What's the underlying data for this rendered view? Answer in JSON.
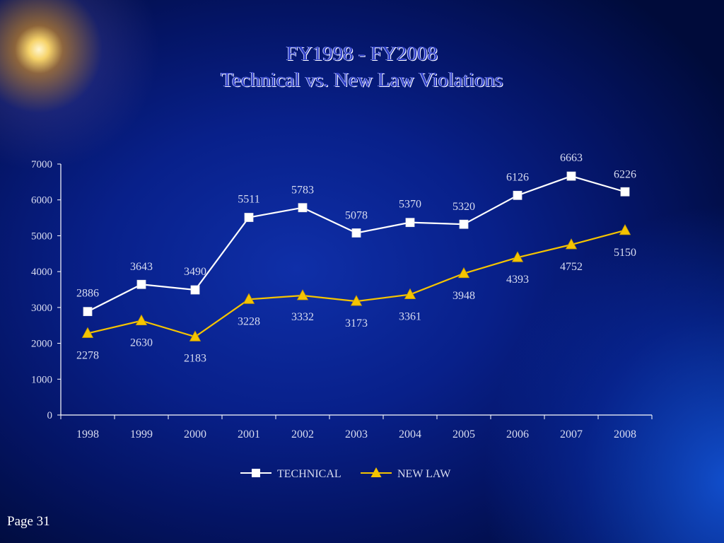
{
  "slide": {
    "title_line1": "FY1998 - FY2008",
    "title_line2": "Technical vs. New Law Violations",
    "page_label": "Page 31"
  },
  "colors": {
    "background": "#000c3e",
    "technical": "#ffffff",
    "new_law": "#f5c400",
    "axis": "#ffffff",
    "labels": "#d8dcf0"
  },
  "chart_data": {
    "type": "line",
    "title": "FY1998 - FY2008 Technical vs. New Law Violations",
    "xlabel": "",
    "ylabel": "",
    "categories": [
      "1998",
      "1999",
      "2000",
      "2001",
      "2002",
      "2003",
      "2004",
      "2005",
      "2006",
      "2007",
      "2008"
    ],
    "ylim": [
      0,
      7000
    ],
    "yticks": [
      0,
      1000,
      2000,
      3000,
      4000,
      5000,
      6000,
      7000
    ],
    "grid": false,
    "legend_position": "bottom",
    "series": [
      {
        "name": "TECHNICAL",
        "marker": "square",
        "values": [
          2886,
          3643,
          3490,
          5511,
          5783,
          5078,
          5370,
          5320,
          6126,
          6663,
          6226
        ]
      },
      {
        "name": "NEW LAW",
        "marker": "triangle",
        "values": [
          2278,
          2630,
          2183,
          3228,
          3332,
          3173,
          3361,
          3948,
          4393,
          4752,
          5150
        ]
      }
    ]
  }
}
